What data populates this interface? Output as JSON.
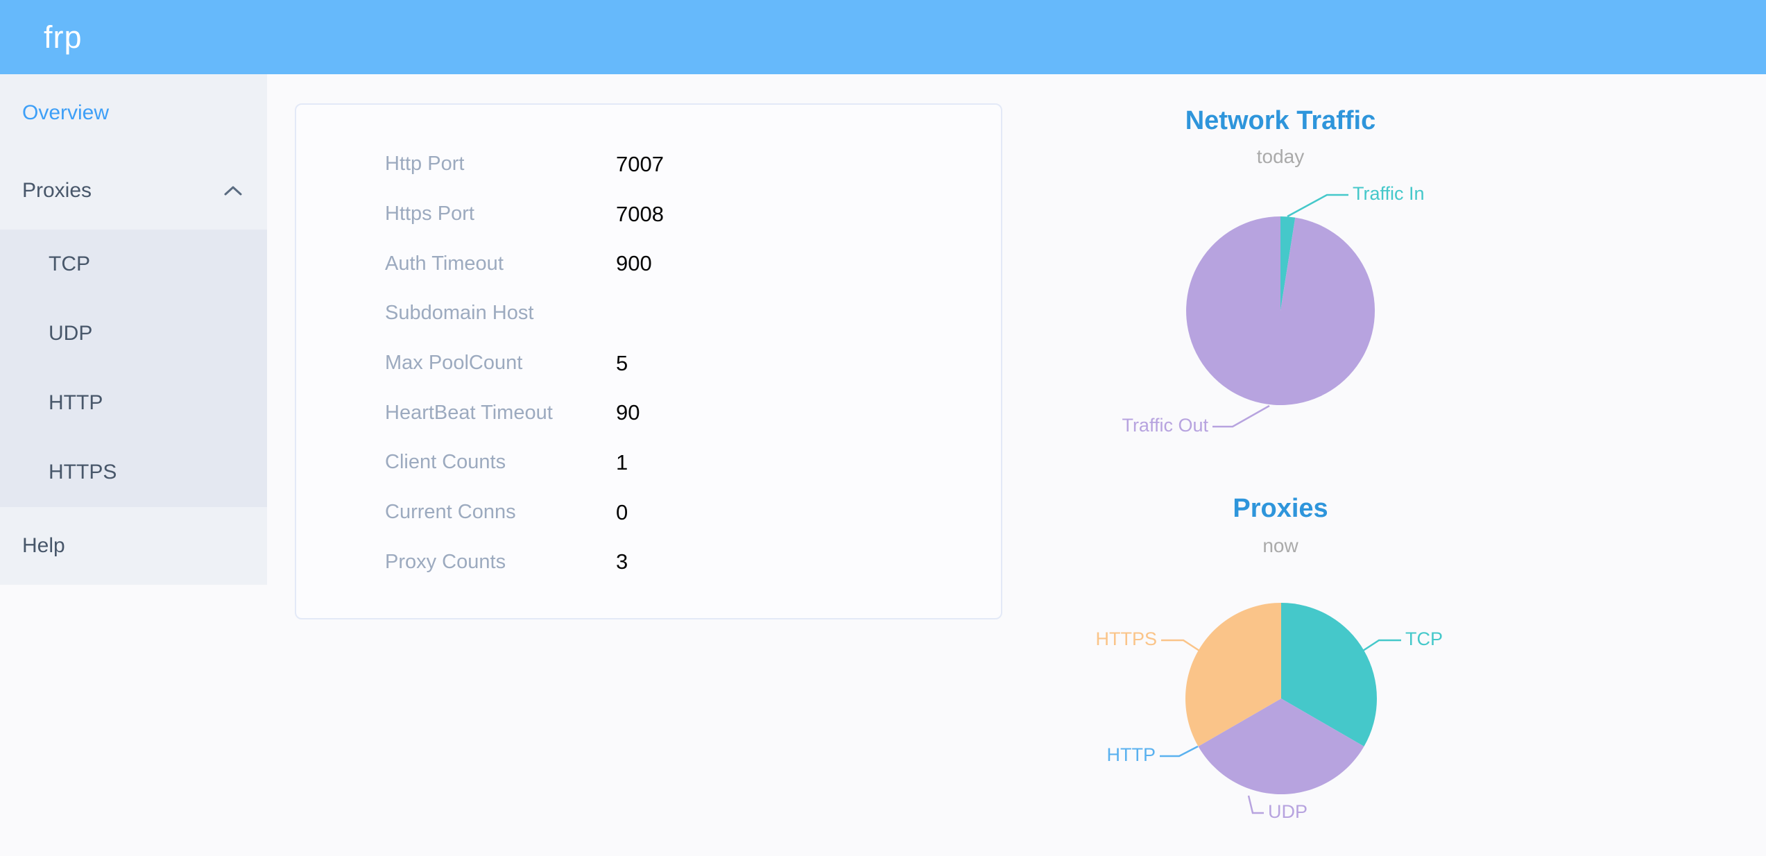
{
  "header": {
    "logo": "frp"
  },
  "sidebar": {
    "items": [
      {
        "label": "Overview",
        "active": true
      },
      {
        "label": "Proxies",
        "expanded": true,
        "icon": "chevron-up"
      },
      {
        "label": "Help"
      }
    ],
    "proxies_submenu": [
      {
        "label": "TCP"
      },
      {
        "label": "UDP"
      },
      {
        "label": "HTTP"
      },
      {
        "label": "HTTPS"
      }
    ]
  },
  "card": {
    "rows": [
      {
        "label": "Http Port",
        "value": "7007"
      },
      {
        "label": "Https Port",
        "value": "7008"
      },
      {
        "label": "Auth Timeout",
        "value": "900"
      },
      {
        "label": "Subdomain Host",
        "value": ""
      },
      {
        "label": "Max PoolCount",
        "value": "5"
      },
      {
        "label": "HeartBeat Timeout",
        "value": "90"
      },
      {
        "label": "Client Counts",
        "value": "1"
      },
      {
        "label": "Current Conns",
        "value": "0"
      },
      {
        "label": "Proxy Counts",
        "value": "3"
      }
    ]
  },
  "colors": {
    "header_bg": "#66b9fb",
    "sidebar_bg": "#eef1f6",
    "submenu_bg": "#e4e8f1",
    "sidebar_text": "#48576a",
    "sidebar_active": "#3d9ff7",
    "title_blue": "#2e95db",
    "teal": "#45c8ca",
    "purple": "#b7a3df",
    "orange": "#fac489",
    "http_blue": "#5ab1ef"
  },
  "chart_data": [
    {
      "type": "pie",
      "title": "Network Traffic",
      "subtitle": "today",
      "legend_position": "callout-labels",
      "slices": [
        {
          "label": "Traffic In",
          "pct": 2.5,
          "color": "#45c8ca"
        },
        {
          "label": "Traffic Out",
          "pct": 97.5,
          "color": "#b7a3df"
        }
      ]
    },
    {
      "type": "pie",
      "title": "Proxies",
      "subtitle": "now",
      "legend_position": "callout-labels",
      "slices": [
        {
          "label": "TCP",
          "pct": 33.34,
          "color": "#45c8ca"
        },
        {
          "label": "UDP",
          "pct": 33.33,
          "color": "#b7a3df"
        },
        {
          "label": "HTTP",
          "pct": 0,
          "color": "#5ab1ef"
        },
        {
          "label": "HTTPS",
          "pct": 33.33,
          "color": "#fac489"
        }
      ]
    }
  ]
}
